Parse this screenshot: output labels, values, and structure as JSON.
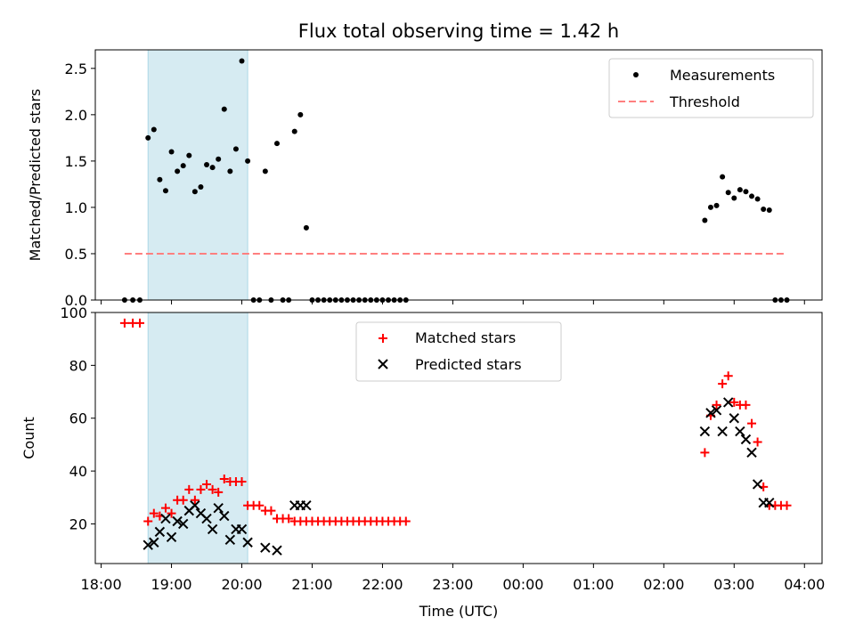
{
  "figure": {
    "title": "Flux total observing time = 1.42 h",
    "xlabel": "Time (UTC)"
  },
  "colors": {
    "measurement": "#000000",
    "threshold": "#ff7f7f",
    "matched": "#ff0000",
    "predicted": "#000000",
    "highlight": "#add8e6"
  },
  "chart_data": [
    {
      "type": "scatter",
      "ylabel": "Matched/Predicted stars",
      "xlim": [
        "17:55",
        "04:15"
      ],
      "ylim": [
        0,
        2.7
      ],
      "yticks": [
        0.0,
        0.5,
        1.0,
        1.5,
        2.0,
        2.5
      ],
      "ytick_labels": [
        "0.0",
        "0.5",
        "1.0",
        "1.5",
        "2.0",
        "2.5"
      ],
      "highlight_span": [
        "18:40",
        "20:05"
      ],
      "legend_position": "upper right",
      "series": [
        {
          "name": "Measurements",
          "marker": "dot",
          "x": [
            "18:20",
            "18:27",
            "18:33",
            "18:40",
            "18:45",
            "18:50",
            "18:55",
            "19:00",
            "19:05",
            "19:10",
            "19:15",
            "19:20",
            "19:25",
            "19:30",
            "19:35",
            "19:40",
            "19:45",
            "19:50",
            "19:55",
            "20:00",
            "20:05",
            "20:10",
            "20:15",
            "20:20",
            "20:25",
            "20:30",
            "20:35",
            "20:40",
            "20:45",
            "20:50",
            "20:55",
            "21:00",
            "21:05",
            "21:10",
            "21:15",
            "21:20",
            "21:25",
            "21:30",
            "21:35",
            "21:40",
            "21:45",
            "21:50",
            "21:55",
            "22:00",
            "22:05",
            "22:10",
            "22:15",
            "22:20",
            "02:35",
            "02:40",
            "02:45",
            "02:50",
            "02:55",
            "03:00",
            "03:05",
            "03:10",
            "03:15",
            "03:20",
            "03:25",
            "03:30",
            "03:35",
            "03:40",
            "03:45"
          ],
          "y": [
            0,
            0,
            0,
            1.75,
            1.84,
            1.3,
            1.18,
            1.6,
            1.39,
            1.45,
            1.56,
            1.17,
            1.22,
            1.46,
            1.43,
            1.52,
            2.06,
            1.39,
            1.63,
            2.58,
            1.5,
            0,
            0,
            1.39,
            0,
            1.69,
            0,
            0,
            1.82,
            2.0,
            0.78,
            0,
            0,
            0,
            0,
            0,
            0,
            0,
            0,
            0,
            0,
            0,
            0,
            0,
            0,
            0,
            0,
            0,
            0.86,
            1.0,
            1.02,
            1.33,
            1.16,
            1.1,
            1.19,
            1.17,
            1.12,
            1.09,
            0.98,
            0.97,
            0,
            0,
            0
          ]
        },
        {
          "name": "Threshold",
          "style": "dashed",
          "x": [
            "18:20",
            "03:45"
          ],
          "y": [
            0.5,
            0.5
          ]
        }
      ]
    },
    {
      "type": "scatter",
      "ylabel": "Count",
      "xlabel": "Time (UTC)",
      "xlim": [
        "17:55",
        "04:15"
      ],
      "ylim": [
        5,
        100
      ],
      "yticks": [
        20,
        40,
        60,
        80,
        100
      ],
      "xtick_labels": [
        "18:00",
        "19:00",
        "20:00",
        "21:00",
        "22:00",
        "23:00",
        "00:00",
        "01:00",
        "02:00",
        "03:00",
        "04:00"
      ],
      "highlight_span": [
        "18:40",
        "20:05"
      ],
      "legend_position": "upper center",
      "series": [
        {
          "name": "Matched stars",
          "marker": "plus",
          "x": [
            "18:20",
            "18:27",
            "18:33",
            "18:40",
            "18:45",
            "18:50",
            "18:55",
            "19:00",
            "19:05",
            "19:10",
            "19:15",
            "19:20",
            "19:25",
            "19:30",
            "19:35",
            "19:40",
            "19:45",
            "19:50",
            "19:55",
            "20:00",
            "20:05",
            "20:10",
            "20:15",
            "20:20",
            "20:25",
            "20:30",
            "20:35",
            "20:40",
            "20:45",
            "20:50",
            "20:55",
            "21:00",
            "21:05",
            "21:10",
            "21:15",
            "21:20",
            "21:25",
            "21:30",
            "21:35",
            "21:40",
            "21:45",
            "21:50",
            "21:55",
            "22:00",
            "22:05",
            "22:10",
            "22:15",
            "22:20",
            "02:35",
            "02:40",
            "02:45",
            "02:50",
            "02:55",
            "03:00",
            "03:05",
            "03:10",
            "03:15",
            "03:20",
            "03:25",
            "03:30",
            "03:35",
            "03:40",
            "03:45"
          ],
          "y": [
            96,
            96,
            96,
            21,
            24,
            23,
            26,
            24,
            29,
            29,
            33,
            29,
            33,
            35,
            33,
            32,
            37,
            36,
            36,
            36,
            27,
            27,
            27,
            25,
            25,
            22,
            22,
            22,
            21,
            21,
            21,
            21,
            21,
            21,
            21,
            21,
            21,
            21,
            21,
            21,
            21,
            21,
            21,
            21,
            21,
            21,
            21,
            21,
            47,
            61,
            65,
            73,
            76,
            66,
            65,
            65,
            58,
            51,
            34,
            27,
            27,
            27,
            27
          ]
        },
        {
          "name": "Predicted stars",
          "marker": "x",
          "x": [
            "18:40",
            "18:45",
            "18:50",
            "18:55",
            "19:00",
            "19:05",
            "19:10",
            "19:15",
            "19:20",
            "19:25",
            "19:30",
            "19:35",
            "19:40",
            "19:45",
            "19:50",
            "19:55",
            "20:00",
            "20:05",
            "20:20",
            "20:30",
            "20:45",
            "20:50",
            "20:55",
            "02:35",
            "02:40",
            "02:45",
            "02:50",
            "02:55",
            "03:00",
            "03:05",
            "03:10",
            "03:15",
            "03:20",
            "03:25",
            "03:30"
          ],
          "y": [
            12,
            13,
            17,
            22,
            15,
            21,
            20,
            25,
            27,
            24,
            22,
            18,
            26,
            23,
            14,
            18,
            18,
            13,
            11,
            10,
            27,
            27,
            27,
            55,
            62,
            63,
            55,
            66,
            60,
            55,
            52,
            47,
            35,
            28,
            28
          ]
        }
      ]
    }
  ]
}
